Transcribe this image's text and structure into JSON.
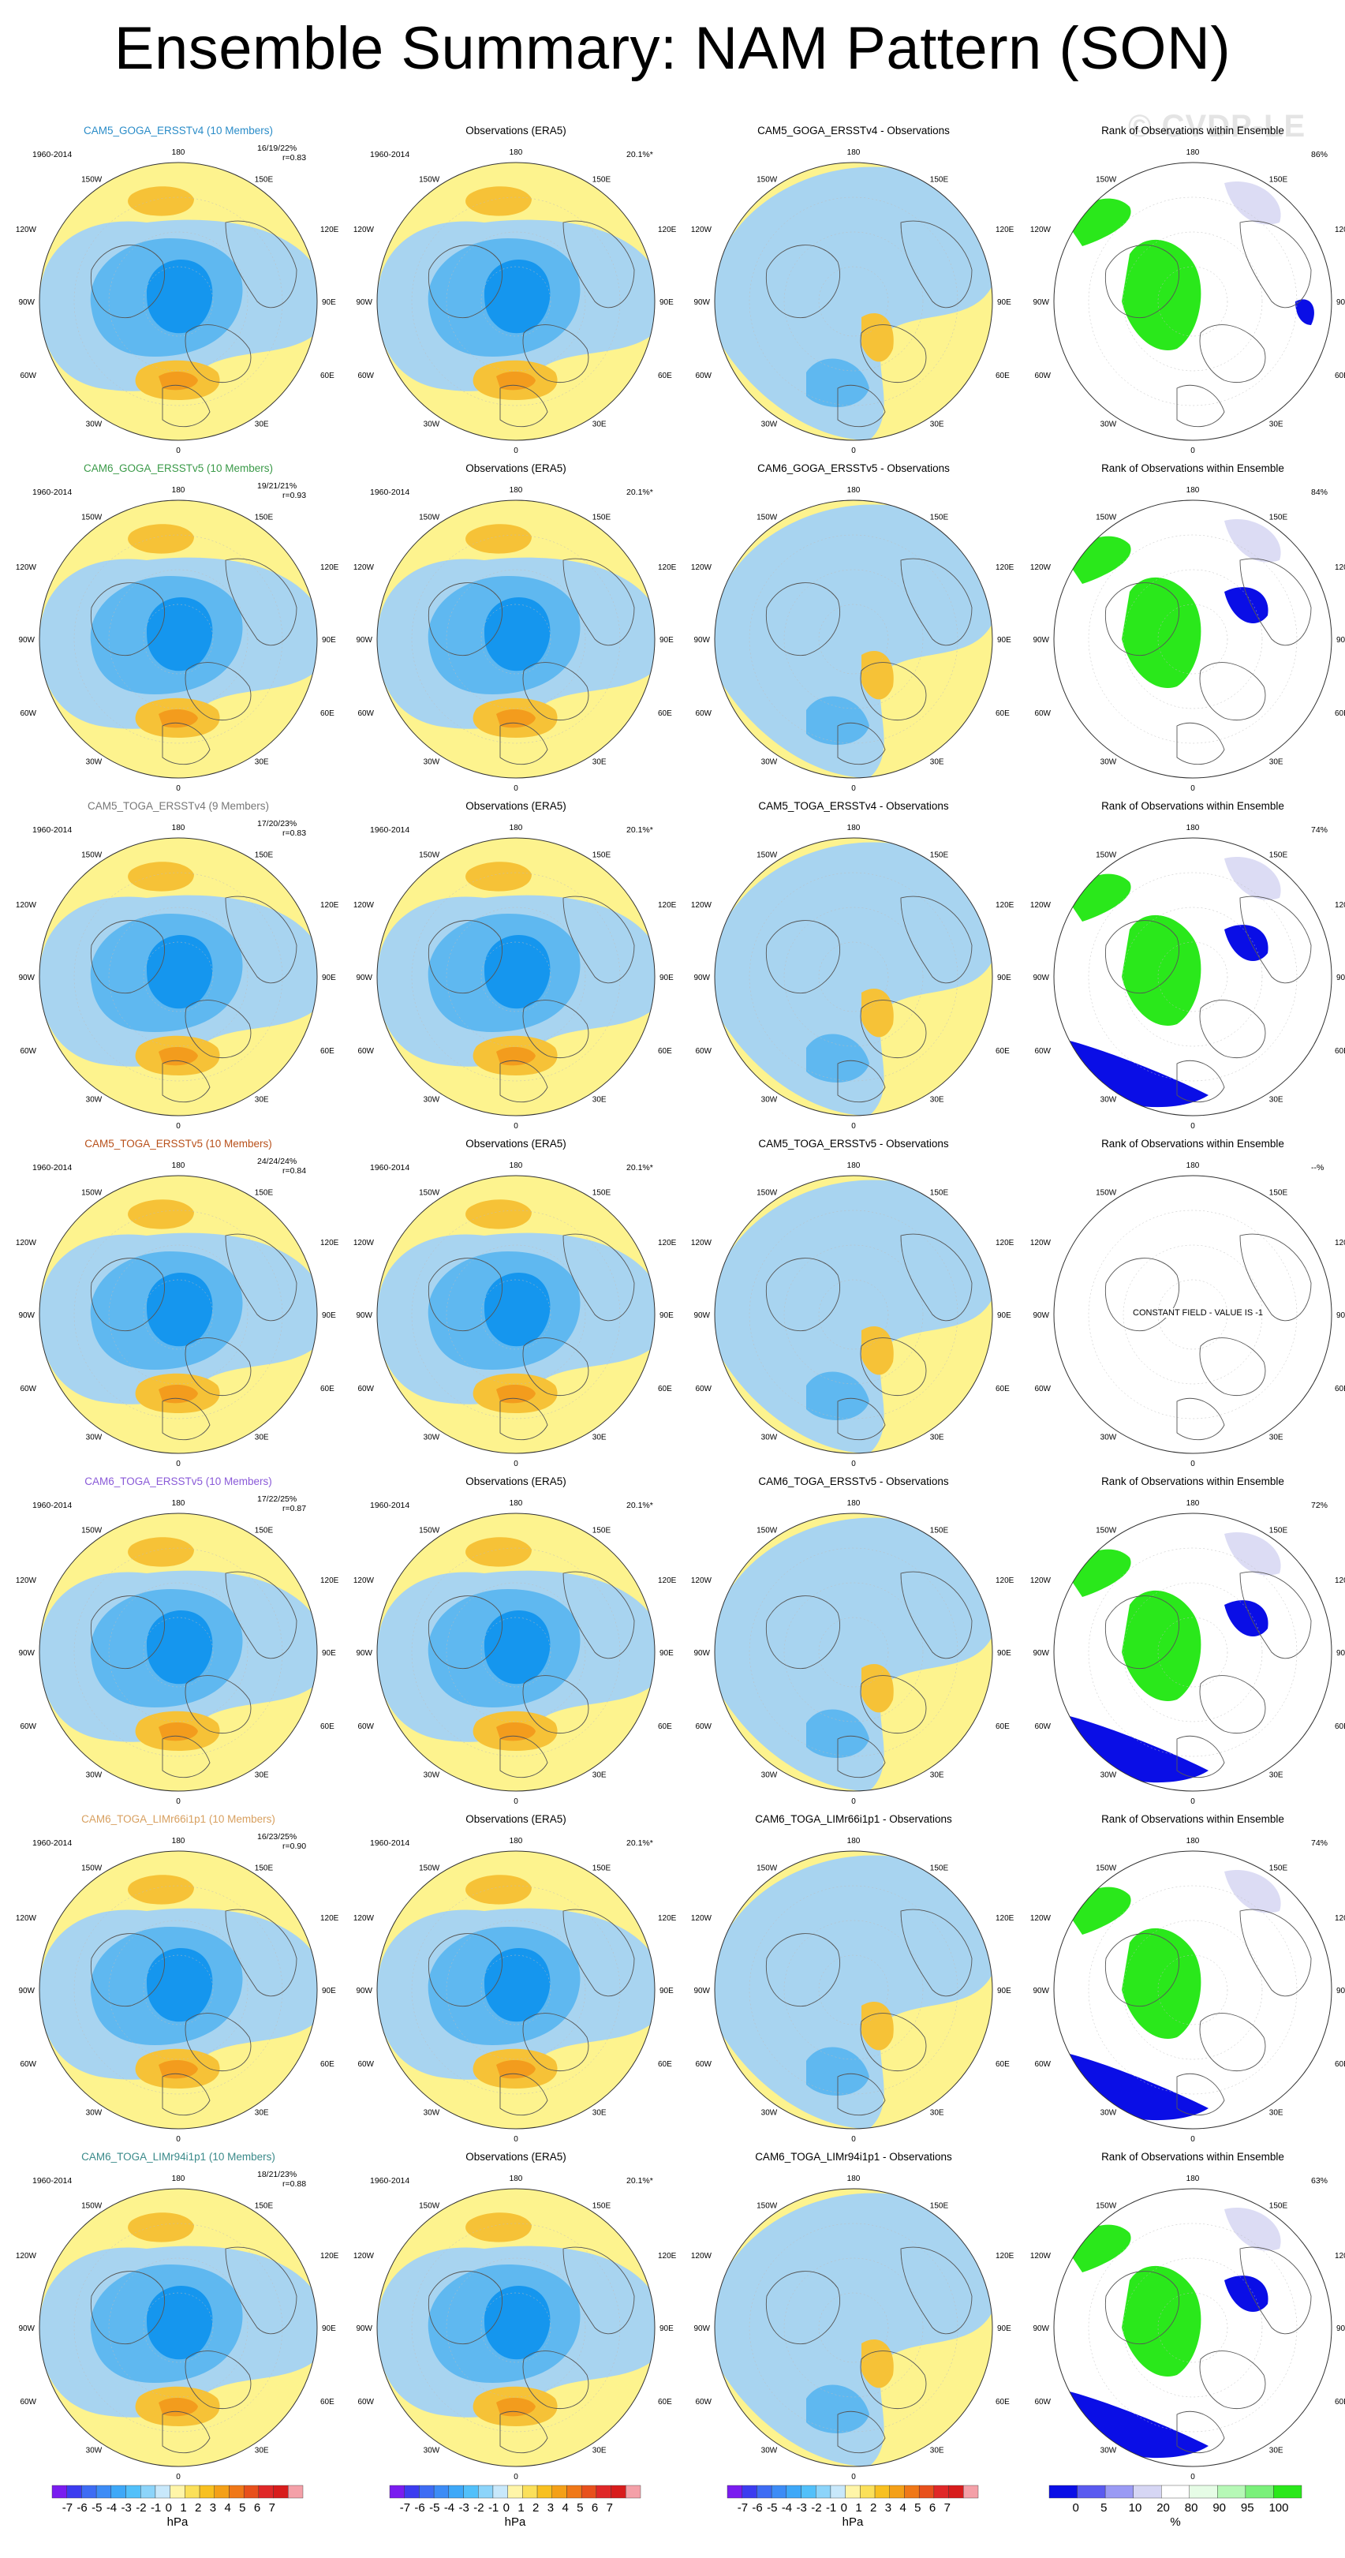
{
  "title": "Ensemble Summary: NAM Pattern (SON)",
  "watermark": "© CVDP-LE",
  "colors": {
    "neg3": "#1596ee",
    "neg2": "#5fb8f0",
    "neg1": "#a8d4f0",
    "pos1": "#fdf38e",
    "pos2": "#f6c237",
    "pos3": "#f39c1d",
    "rank_green": "#2ae81b",
    "rank_blue": "#0a0ee6",
    "rank_lav": "#dcdcf4"
  },
  "longitudes": [
    "180",
    "150W",
    "150E",
    "120W",
    "120E",
    "90W",
    "90E",
    "60W",
    "60E",
    "30W",
    "30E",
    "0"
  ],
  "rows": [
    {
      "model": "CAM5_GOGA_ERSSTv4 (10 Members)",
      "model_color": "#2a8cc8",
      "years": "1960-2014",
      "ratio": "16/19/22%",
      "r": "r=0.83",
      "obs_title": "Observations (ERA5)",
      "obs_years": "1960-2014",
      "obs_pct": "20.1%*",
      "diff_title": "CAM5_GOGA_ERSSTv4 - Observations",
      "rank_title": "Rank of Observations within Ensemble",
      "rank_pct": "86%",
      "constant": false
    },
    {
      "model": "CAM6_GOGA_ERSSTv5 (10 Members)",
      "model_color": "#3a9a48",
      "years": "1960-2014",
      "ratio": "19/21/21%",
      "r": "r=0.93",
      "obs_title": "Observations (ERA5)",
      "obs_years": "1960-2014",
      "obs_pct": "20.1%*",
      "diff_title": "CAM6_GOGA_ERSSTv5 - Observations",
      "rank_title": "Rank of Observations within Ensemble",
      "rank_pct": "84%",
      "constant": false
    },
    {
      "model": "CAM5_TOGA_ERSSTv4 (9 Members)",
      "model_color": "#777777",
      "years": "1960-2014",
      "ratio": "17/20/23%",
      "r": "r=0.83",
      "obs_title": "Observations (ERA5)",
      "obs_years": "1960-2014",
      "obs_pct": "20.1%*",
      "diff_title": "CAM5_TOGA_ERSSTv4 - Observations",
      "rank_title": "Rank of Observations within Ensemble",
      "rank_pct": "74%",
      "constant": false
    },
    {
      "model": "CAM5_TOGA_ERSSTv5 (10 Members)",
      "model_color": "#b8501a",
      "years": "1960-2014",
      "ratio": "24/24/24%",
      "r": "r=0.84",
      "obs_title": "Observations (ERA5)",
      "obs_years": "1960-2014",
      "obs_pct": "20.1%*",
      "diff_title": "CAM5_TOGA_ERSSTv5 - Observations",
      "rank_title": "Rank of Observations within Ensemble",
      "rank_pct": "--%",
      "constant": true,
      "constant_text": "CONSTANT FIELD - VALUE IS -1"
    },
    {
      "model": "CAM6_TOGA_ERSSTv5 (10 Members)",
      "model_color": "#8a5ad8",
      "years": "1960-2014",
      "ratio": "17/22/25%",
      "r": "r=0.87",
      "obs_title": "Observations (ERA5)",
      "obs_years": "1960-2014",
      "obs_pct": "20.1%*",
      "diff_title": "CAM6_TOGA_ERSSTv5 - Observations",
      "rank_title": "Rank of Observations within Ensemble",
      "rank_pct": "72%",
      "constant": false
    },
    {
      "model": "CAM6_TOGA_LIMr66i1p1 (10 Members)",
      "model_color": "#d8a060",
      "years": "1960-2014",
      "ratio": "16/23/25%",
      "r": "r=0.90",
      "obs_title": "Observations (ERA5)",
      "obs_years": "1960-2014",
      "obs_pct": "20.1%*",
      "diff_title": "CAM6_TOGA_LIMr66i1p1 - Observations",
      "rank_title": "Rank of Observations within Ensemble",
      "rank_pct": "74%",
      "constant": false
    },
    {
      "model": "CAM6_TOGA_LIMr94i1p1 (10 Members)",
      "model_color": "#3a8a8a",
      "years": "1960-2014",
      "ratio": "18/21/23%",
      "r": "r=0.88",
      "obs_title": "Observations (ERA5)",
      "obs_years": "1960-2014",
      "obs_pct": "20.1%*",
      "diff_title": "CAM6_TOGA_LIMr94i1p1 - Observations",
      "rank_title": "Rank of Observations within Ensemble",
      "rank_pct": "63%",
      "constant": false
    }
  ],
  "colorbars": {
    "hpa_colors": [
      "#7a1cf0",
      "#3c3cf0",
      "#3e6cf4",
      "#3d8cf6",
      "#3ea8f8",
      "#52c0fa",
      "#8cd4fa",
      "#c8e8fb",
      "#fff5a8",
      "#fbe05a",
      "#f8c020",
      "#f4a018",
      "#f07818",
      "#e8501c",
      "#e02828",
      "#d81c1c",
      "#f4a0a8"
    ],
    "hpa_labels": [
      "-7",
      "-6",
      "-5",
      "-4",
      "-3",
      "-2",
      "-1",
      "0",
      "1",
      "2",
      "3",
      "4",
      "5",
      "6",
      "7"
    ],
    "hpa_unit": "hPa",
    "pct_colors": [
      "#0a0ee6",
      "#5a5af0",
      "#9a9af4",
      "#d6d6f4",
      "#ffffff",
      "#e6fce6",
      "#b6f8b6",
      "#7af07a",
      "#2ae81b"
    ],
    "pct_labels": [
      "0",
      "5",
      "10",
      "20",
      "80",
      "90",
      "95",
      "100"
    ],
    "pct_unit": "%"
  }
}
